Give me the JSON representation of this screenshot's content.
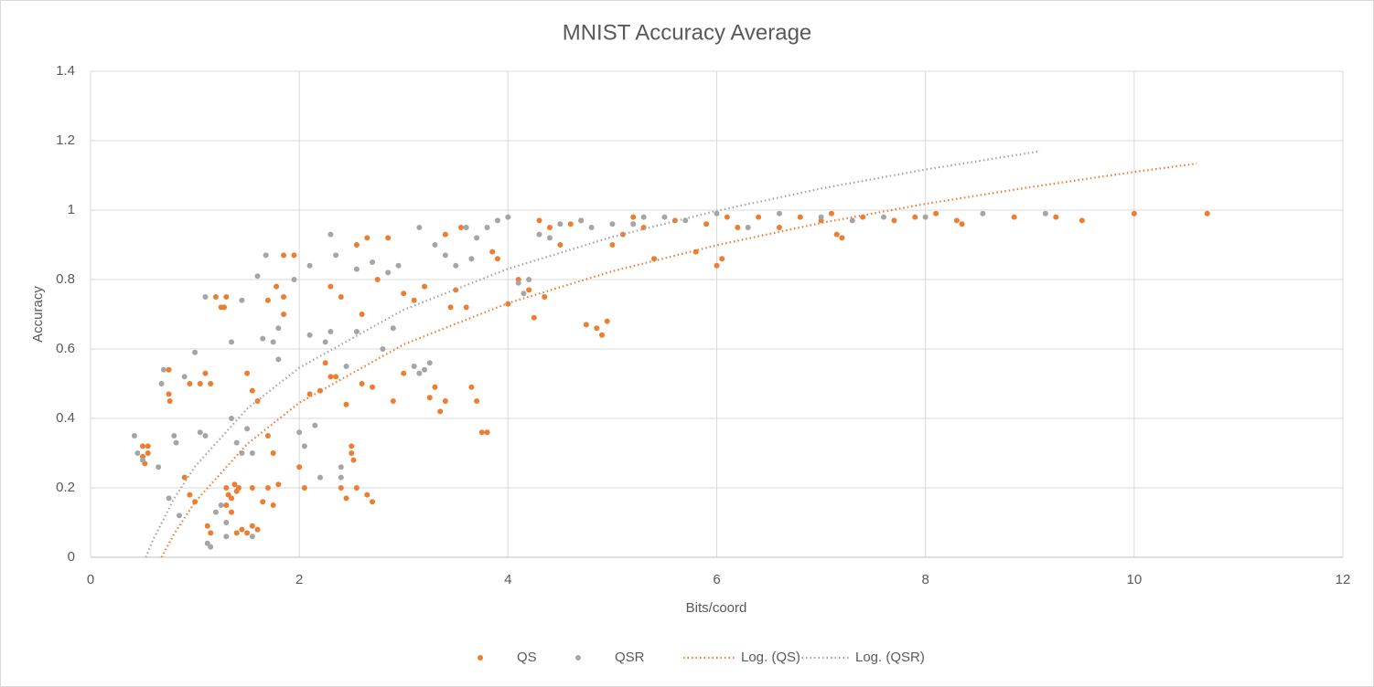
{
  "chart_data": {
    "type": "scatter",
    "title": "MNIST Accuracy Average",
    "x_label": "Bits/coord",
    "y_label": "Accuracy",
    "xlim": [
      0,
      12
    ],
    "xticks": [
      0,
      2,
      4,
      6,
      8,
      10,
      12
    ],
    "ylim": [
      0,
      1.4
    ],
    "yticks": [
      0,
      0.2,
      0.4,
      0.6,
      0.8,
      1,
      1.2,
      1.4
    ],
    "grid": true,
    "legend": "bottom",
    "series": [
      {
        "name": "QS",
        "color": "#ed7d31",
        "mark": "point",
        "x": [
          0.5,
          0.55,
          0.5,
          0.55,
          0.52,
          0.75,
          0.75,
          0.76,
          0.9,
          0.95,
          1.0,
          0.95,
          1.05,
          1.1,
          1.15,
          1.12,
          1.15,
          1.2,
          1.25,
          1.3,
          1.28,
          1.3,
          1.32,
          1.35,
          1.3,
          1.38,
          1.4,
          1.42,
          1.35,
          1.4,
          1.45,
          1.5,
          1.55,
          1.6,
          1.5,
          1.55,
          1.6,
          1.55,
          1.65,
          1.7,
          1.75,
          1.8,
          1.7,
          1.78,
          1.85,
          1.85,
          1.95,
          1.85,
          1.7,
          1.75,
          2.0,
          2.05,
          2.1,
          2.2,
          2.25,
          2.3,
          2.35,
          2.3,
          2.4,
          2.45,
          2.5,
          2.5,
          2.52,
          2.4,
          2.45,
          2.55,
          2.6,
          2.55,
          2.65,
          2.6,
          2.7,
          2.65,
          2.7,
          2.75,
          2.85,
          2.9,
          3.0,
          3.0,
          3.1,
          3.2,
          3.25,
          3.3,
          3.35,
          3.4,
          3.45,
          3.5,
          3.6,
          3.4,
          3.55,
          3.65,
          3.7,
          3.75,
          3.8,
          3.85,
          3.9,
          4.0,
          4.1,
          4.2,
          4.25,
          4.35,
          4.3,
          4.4,
          4.5,
          4.6,
          4.7,
          4.75,
          4.85,
          4.9,
          4.95,
          5.0,
          5.1,
          5.2,
          5.3,
          5.4,
          5.6,
          5.8,
          5.9,
          6.0,
          6.05,
          6.1,
          6.2,
          6.4,
          6.6,
          6.8,
          7.0,
          7.1,
          7.15,
          7.2,
          7.4,
          7.7,
          7.9,
          8.1,
          8.3,
          8.35,
          8.85,
          9.25,
          9.5,
          10.0,
          10.7
        ],
        "values": [
          0.32,
          0.32,
          0.29,
          0.3,
          0.27,
          0.54,
          0.47,
          0.45,
          0.23,
          0.18,
          0.16,
          0.5,
          0.5,
          0.53,
          0.5,
          0.09,
          0.07,
          0.75,
          0.72,
          0.75,
          0.72,
          0.2,
          0.18,
          0.17,
          0.15,
          0.21,
          0.19,
          0.2,
          0.13,
          0.07,
          0.08,
          0.07,
          0.09,
          0.08,
          0.53,
          0.48,
          0.45,
          0.2,
          0.16,
          0.2,
          0.15,
          0.21,
          0.74,
          0.78,
          0.75,
          0.87,
          0.87,
          0.7,
          0.35,
          0.3,
          0.26,
          0.2,
          0.47,
          0.48,
          0.56,
          0.52,
          0.52,
          0.78,
          0.75,
          0.44,
          0.3,
          0.32,
          0.28,
          0.2,
          0.17,
          0.2,
          0.7,
          0.9,
          0.92,
          0.5,
          0.49,
          0.18,
          0.16,
          0.8,
          0.92,
          0.45,
          0.53,
          0.76,
          0.74,
          0.78,
          0.46,
          0.49,
          0.42,
          0.45,
          0.72,
          0.77,
          0.72,
          0.93,
          0.95,
          0.49,
          0.45,
          0.36,
          0.36,
          0.88,
          0.86,
          0.73,
          0.8,
          0.77,
          0.69,
          0.75,
          0.97,
          0.95,
          0.9,
          0.96,
          0.97,
          0.67,
          0.66,
          0.64,
          0.68,
          0.9,
          0.93,
          0.98,
          0.95,
          0.86,
          0.97,
          0.88,
          0.96,
          0.84,
          0.86,
          0.98,
          0.95,
          0.98,
          0.95,
          0.98,
          0.97,
          0.99,
          0.93,
          0.92,
          0.98,
          0.97,
          0.98,
          0.99,
          0.97,
          0.96,
          0.98,
          0.98,
          0.97,
          0.99,
          0.99
        ]
      },
      {
        "name": "QSR",
        "color": "#a5a5a5",
        "mark": "point",
        "x": [
          0.42,
          0.45,
          0.5,
          0.65,
          0.68,
          0.7,
          0.75,
          0.8,
          0.82,
          0.85,
          0.9,
          1.0,
          1.05,
          1.1,
          1.1,
          1.12,
          1.15,
          1.2,
          1.25,
          1.3,
          1.3,
          1.35,
          1.35,
          1.4,
          1.45,
          1.45,
          1.5,
          1.55,
          1.55,
          1.6,
          1.65,
          1.68,
          1.75,
          1.8,
          1.8,
          1.95,
          2.0,
          2.05,
          2.1,
          2.1,
          2.15,
          2.2,
          2.25,
          2.3,
          2.3,
          2.35,
          2.4,
          2.4,
          2.45,
          2.55,
          2.55,
          2.7,
          2.8,
          2.85,
          2.9,
          2.95,
          3.1,
          3.15,
          3.2,
          3.25,
          3.15,
          3.3,
          3.4,
          3.5,
          3.6,
          3.65,
          3.7,
          3.8,
          3.9,
          4.0,
          4.1,
          4.15,
          4.2,
          4.3,
          4.4,
          4.5,
          4.7,
          4.8,
          5.0,
          5.2,
          5.3,
          5.5,
          5.7,
          6.0,
          6.3,
          6.6,
          7.0,
          7.3,
          7.6,
          8.0,
          8.55,
          9.15
        ],
        "values": [
          0.35,
          0.3,
          0.28,
          0.26,
          0.5,
          0.54,
          0.17,
          0.35,
          0.33,
          0.12,
          0.52,
          0.59,
          0.36,
          0.75,
          0.35,
          0.04,
          0.03,
          0.13,
          0.15,
          0.1,
          0.06,
          0.62,
          0.4,
          0.33,
          0.3,
          0.74,
          0.37,
          0.3,
          0.06,
          0.81,
          0.63,
          0.87,
          0.62,
          0.57,
          0.66,
          0.8,
          0.36,
          0.32,
          0.84,
          0.64,
          0.38,
          0.23,
          0.62,
          0.65,
          0.93,
          0.87,
          0.23,
          0.26,
          0.55,
          0.65,
          0.83,
          0.85,
          0.6,
          0.82,
          0.66,
          0.84,
          0.55,
          0.53,
          0.54,
          0.56,
          0.95,
          0.9,
          0.87,
          0.84,
          0.95,
          0.86,
          0.92,
          0.95,
          0.97,
          0.98,
          0.79,
          0.76,
          0.8,
          0.93,
          0.92,
          0.96,
          0.97,
          0.95,
          0.96,
          0.96,
          0.98,
          0.98,
          0.97,
          0.99,
          0.95,
          0.99,
          0.98,
          0.97,
          0.98,
          0.98,
          0.99,
          0.99
        ]
      },
      {
        "name": "Log. (QS)",
        "color": "#ed7d31",
        "mark": "dotted-line",
        "x": [
          0.68,
          0.8,
          1,
          1.5,
          2,
          3,
          4,
          5,
          6,
          7,
          8,
          9,
          10,
          10.6
        ],
        "values": [
          0,
          0.067,
          0.159,
          0.326,
          0.445,
          0.613,
          0.732,
          0.824,
          0.899,
          0.963,
          1.018,
          1.066,
          1.11,
          1.134
        ]
      },
      {
        "name": "Log. (QSR)",
        "color": "#a5a5a5",
        "mark": "dotted-line",
        "x": [
          0.53,
          0.6,
          0.8,
          1,
          1.5,
          2,
          3,
          4,
          5,
          6,
          7,
          8,
          9,
          9.1
        ],
        "values": [
          0,
          0.051,
          0.169,
          0.261,
          0.428,
          0.546,
          0.713,
          0.831,
          0.923,
          0.998,
          1.062,
          1.117,
          1.165,
          1.17
        ]
      }
    ]
  }
}
